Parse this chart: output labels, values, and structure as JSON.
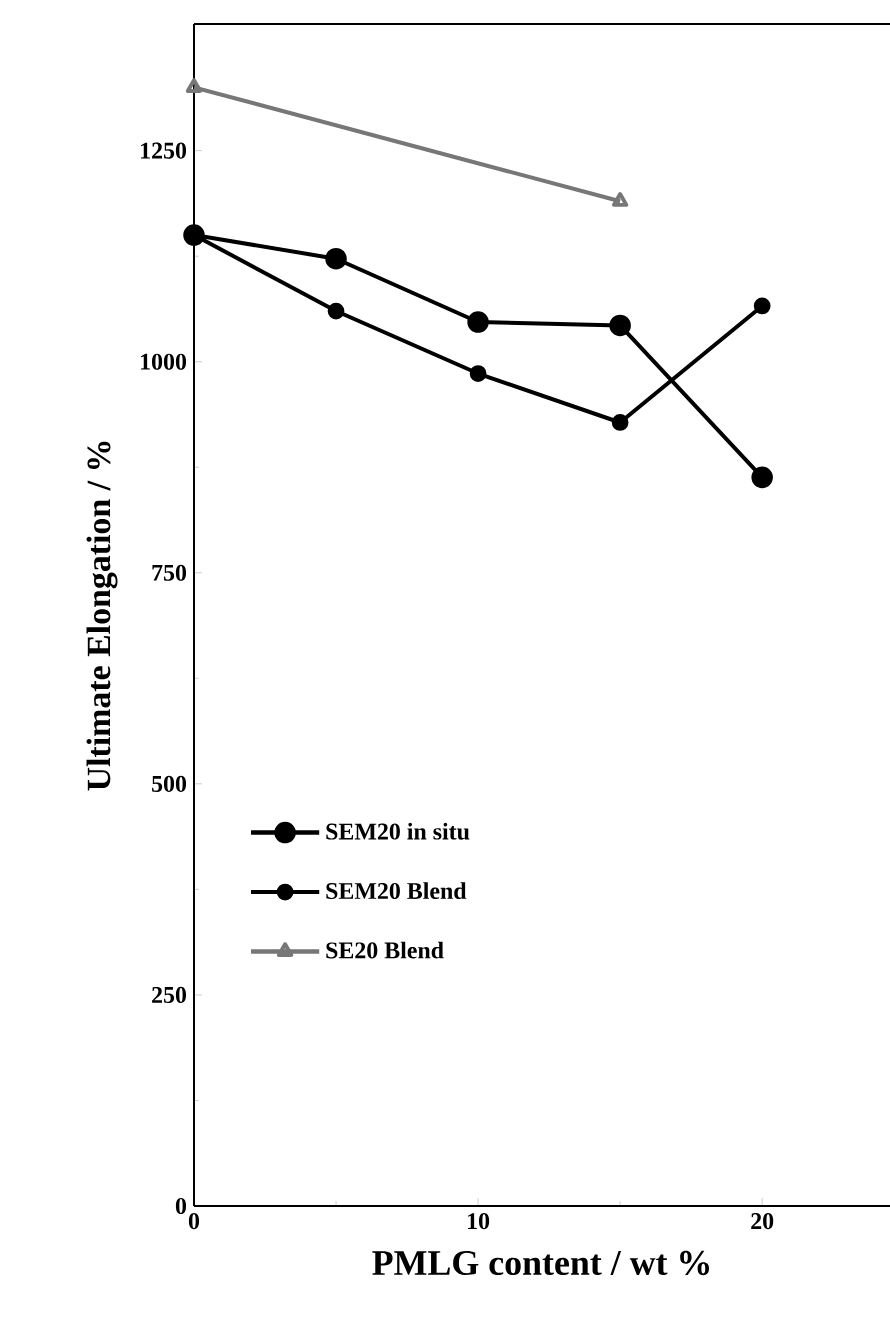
{
  "chart_data": {
    "type": "line",
    "xlabel": "PMLG content / wt %",
    "ylabel": "Ultimate Elongation / %",
    "x": [
      0,
      5,
      10,
      15,
      20
    ],
    "xlim": [
      0,
      24.5
    ],
    "xticks": [
      0,
      10,
      20
    ],
    "ylim": [
      0,
      1400
    ],
    "yticks": [
      0,
      250,
      500,
      750,
      1000,
      1250
    ],
    "legend": "bottom left",
    "grid": false,
    "line_style": "solid",
    "series": [
      {
        "name": "SEM20 in situ",
        "color": "#000000",
        "marker": "circle",
        "values": [
          1150,
          1122,
          1047,
          1043,
          863
        ]
      },
      {
        "name": "SEM20 Blend",
        "color": "#000000",
        "marker": "circle",
        "values": [
          1150,
          1060,
          986,
          928,
          1066
        ]
      },
      {
        "name": "SE20 Blend",
        "color": "#777777",
        "marker": "triangle",
        "x": [
          0,
          15
        ],
        "values": [
          1325,
          1190
        ]
      }
    ]
  }
}
